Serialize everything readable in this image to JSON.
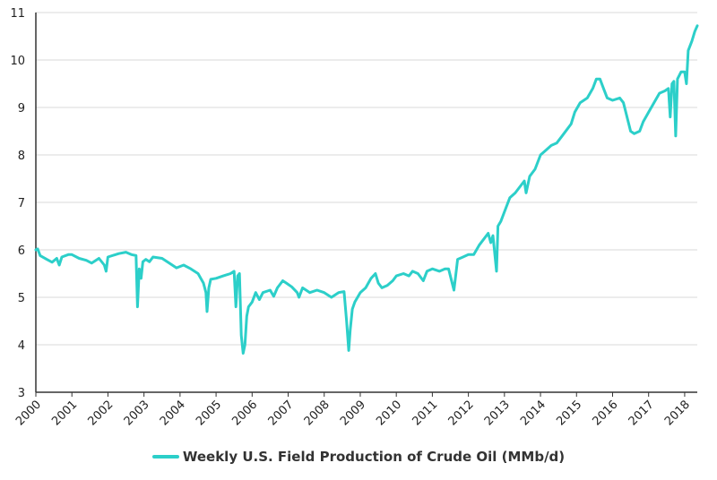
{
  "colors": {
    "series": "#2ccfc9",
    "grid": "#d9d9d9",
    "axis": "#333333"
  },
  "chart_data": {
    "type": "line",
    "title": "",
    "xlabel": "",
    "ylabel": "",
    "xlim": [
      2000,
      2018.35
    ],
    "ylim": [
      3,
      11
    ],
    "grid": "horizontal",
    "legend_position": "bottom",
    "y_ticks": [
      "3",
      "4",
      "5",
      "6",
      "7",
      "8",
      "9",
      "10",
      "11"
    ],
    "x_tick_labels": [
      "2000",
      "2001",
      "2002",
      "2003",
      "2004",
      "2005",
      "2006",
      "2007",
      "2008",
      "2009",
      "2010",
      "2011",
      "2012",
      "2013",
      "2014",
      "2015",
      "2016",
      "2017",
      "2018"
    ],
    "series": [
      {
        "name": "Weekly U.S. Field Production of Crude Oil (MMb/d)",
        "points": [
          [
            2000.0,
            6.0
          ],
          [
            2000.05,
            6.02
          ],
          [
            2000.12,
            5.88
          ],
          [
            2000.3,
            5.8
          ],
          [
            2000.45,
            5.74
          ],
          [
            2000.58,
            5.82
          ],
          [
            2000.65,
            5.68
          ],
          [
            2000.72,
            5.85
          ],
          [
            2000.9,
            5.9
          ],
          [
            2001.0,
            5.9
          ],
          [
            2001.2,
            5.82
          ],
          [
            2001.4,
            5.78
          ],
          [
            2001.55,
            5.72
          ],
          [
            2001.75,
            5.82
          ],
          [
            2001.9,
            5.68
          ],
          [
            2001.95,
            5.55
          ],
          [
            2002.0,
            5.85
          ],
          [
            2002.3,
            5.92
          ],
          [
            2002.5,
            5.95
          ],
          [
            2002.65,
            5.9
          ],
          [
            2002.78,
            5.88
          ],
          [
            2002.82,
            4.8
          ],
          [
            2002.87,
            5.6
          ],
          [
            2002.92,
            5.4
          ],
          [
            2002.97,
            5.75
          ],
          [
            2003.05,
            5.8
          ],
          [
            2003.15,
            5.75
          ],
          [
            2003.25,
            5.85
          ],
          [
            2003.5,
            5.82
          ],
          [
            2003.7,
            5.72
          ],
          [
            2003.9,
            5.62
          ],
          [
            2004.1,
            5.68
          ],
          [
            2004.3,
            5.6
          ],
          [
            2004.5,
            5.5
          ],
          [
            2004.65,
            5.3
          ],
          [
            2004.72,
            5.1
          ],
          [
            2004.75,
            4.7
          ],
          [
            2004.8,
            5.2
          ],
          [
            2004.85,
            5.38
          ],
          [
            2005.0,
            5.4
          ],
          [
            2005.2,
            5.45
          ],
          [
            2005.4,
            5.5
          ],
          [
            2005.5,
            5.55
          ],
          [
            2005.55,
            4.8
          ],
          [
            2005.6,
            5.45
          ],
          [
            2005.65,
            5.5
          ],
          [
            2005.7,
            4.2
          ],
          [
            2005.75,
            3.82
          ],
          [
            2005.8,
            4.0
          ],
          [
            2005.85,
            4.6
          ],
          [
            2005.9,
            4.8
          ],
          [
            2006.0,
            4.9
          ],
          [
            2006.1,
            5.1
          ],
          [
            2006.2,
            4.95
          ],
          [
            2006.3,
            5.1
          ],
          [
            2006.5,
            5.15
          ],
          [
            2006.6,
            5.02
          ],
          [
            2006.7,
            5.2
          ],
          [
            2006.85,
            5.35
          ],
          [
            2006.95,
            5.3
          ],
          [
            2007.1,
            5.22
          ],
          [
            2007.25,
            5.1
          ],
          [
            2007.3,
            5.0
          ],
          [
            2007.4,
            5.2
          ],
          [
            2007.6,
            5.1
          ],
          [
            2007.8,
            5.15
          ],
          [
            2008.0,
            5.1
          ],
          [
            2008.2,
            5.0
          ],
          [
            2008.4,
            5.1
          ],
          [
            2008.55,
            5.12
          ],
          [
            2008.62,
            4.5
          ],
          [
            2008.68,
            3.88
          ],
          [
            2008.72,
            4.3
          ],
          [
            2008.78,
            4.75
          ],
          [
            2008.85,
            4.9
          ],
          [
            2009.0,
            5.1
          ],
          [
            2009.15,
            5.2
          ],
          [
            2009.3,
            5.4
          ],
          [
            2009.42,
            5.5
          ],
          [
            2009.5,
            5.3
          ],
          [
            2009.6,
            5.2
          ],
          [
            2009.75,
            5.25
          ],
          [
            2009.9,
            5.35
          ],
          [
            2010.0,
            5.45
          ],
          [
            2010.2,
            5.5
          ],
          [
            2010.35,
            5.45
          ],
          [
            2010.45,
            5.55
          ],
          [
            2010.6,
            5.5
          ],
          [
            2010.75,
            5.35
          ],
          [
            2010.85,
            5.55
          ],
          [
            2011.0,
            5.6
          ],
          [
            2011.2,
            5.55
          ],
          [
            2011.35,
            5.6
          ],
          [
            2011.45,
            5.6
          ],
          [
            2011.6,
            5.15
          ],
          [
            2011.7,
            5.8
          ],
          [
            2011.85,
            5.85
          ],
          [
            2012.0,
            5.9
          ],
          [
            2012.15,
            5.9
          ],
          [
            2012.3,
            6.1
          ],
          [
            2012.45,
            6.25
          ],
          [
            2012.55,
            6.35
          ],
          [
            2012.62,
            6.15
          ],
          [
            2012.68,
            6.3
          ],
          [
            2012.78,
            5.55
          ],
          [
            2012.82,
            6.5
          ],
          [
            2012.9,
            6.6
          ],
          [
            2013.0,
            6.8
          ],
          [
            2013.15,
            7.1
          ],
          [
            2013.3,
            7.2
          ],
          [
            2013.45,
            7.35
          ],
          [
            2013.55,
            7.45
          ],
          [
            2013.6,
            7.2
          ],
          [
            2013.7,
            7.55
          ],
          [
            2013.85,
            7.7
          ],
          [
            2014.0,
            8.0
          ],
          [
            2014.15,
            8.1
          ],
          [
            2014.3,
            8.2
          ],
          [
            2014.45,
            8.25
          ],
          [
            2014.6,
            8.4
          ],
          [
            2014.75,
            8.55
          ],
          [
            2014.85,
            8.65
          ],
          [
            2014.95,
            8.9
          ],
          [
            2015.1,
            9.1
          ],
          [
            2015.3,
            9.2
          ],
          [
            2015.45,
            9.4
          ],
          [
            2015.55,
            9.6
          ],
          [
            2015.65,
            9.6
          ],
          [
            2015.75,
            9.4
          ],
          [
            2015.85,
            9.2
          ],
          [
            2016.0,
            9.15
          ],
          [
            2016.2,
            9.2
          ],
          [
            2016.3,
            9.1
          ],
          [
            2016.4,
            8.8
          ],
          [
            2016.5,
            8.5
          ],
          [
            2016.6,
            8.45
          ],
          [
            2016.75,
            8.5
          ],
          [
            2016.85,
            8.7
          ],
          [
            2017.0,
            8.9
          ],
          [
            2017.15,
            9.1
          ],
          [
            2017.3,
            9.3
          ],
          [
            2017.45,
            9.35
          ],
          [
            2017.55,
            9.4
          ],
          [
            2017.6,
            8.8
          ],
          [
            2017.65,
            9.5
          ],
          [
            2017.7,
            9.55
          ],
          [
            2017.75,
            8.4
          ],
          [
            2017.8,
            9.6
          ],
          [
            2017.9,
            9.75
          ],
          [
            2018.0,
            9.75
          ],
          [
            2018.05,
            9.5
          ],
          [
            2018.1,
            10.2
          ],
          [
            2018.2,
            10.4
          ],
          [
            2018.28,
            10.6
          ],
          [
            2018.35,
            10.72
          ]
        ]
      }
    ]
  }
}
